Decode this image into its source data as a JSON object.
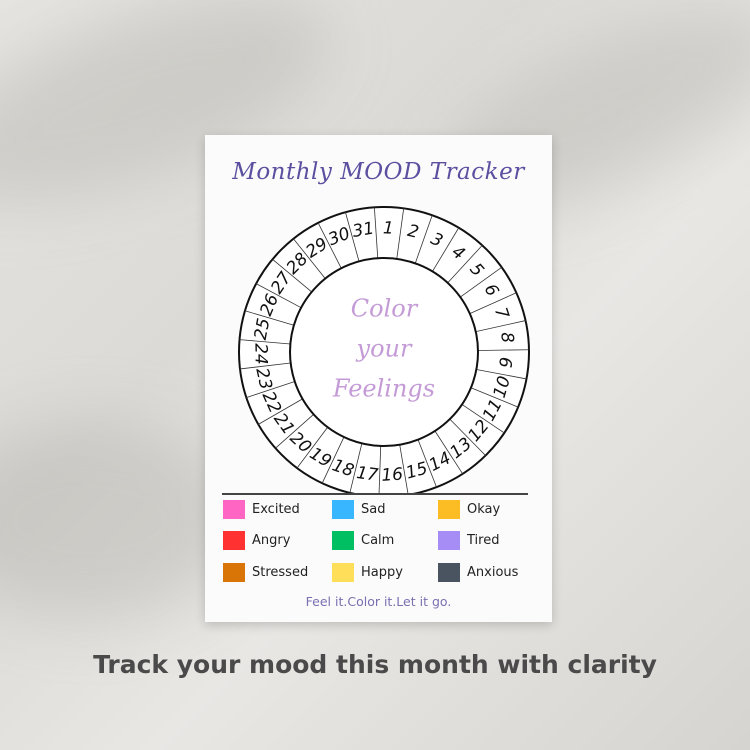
{
  "title": "Monthly MOOD Tracker",
  "center_text": [
    "Color",
    "your",
    "Feelings"
  ],
  "days": [
    1,
    2,
    3,
    4,
    5,
    6,
    7,
    8,
    9,
    10,
    11,
    12,
    13,
    14,
    15,
    16,
    17,
    18,
    19,
    20,
    21,
    22,
    23,
    24,
    25,
    26,
    27,
    28,
    29,
    30,
    31
  ],
  "legend": [
    {
      "label": "Excited",
      "color": "#ff66c4"
    },
    {
      "label": "Sad",
      "color": "#38b6ff"
    },
    {
      "label": "Okay",
      "color": "#fbbc24"
    },
    {
      "label": "Angry",
      "color": "#ff3131"
    },
    {
      "label": "Calm",
      "color": "#00bf63"
    },
    {
      "label": "Tired",
      "color": "#a68cf5"
    },
    {
      "label": "Stressed",
      "color": "#d87506"
    },
    {
      "label": "Happy",
      "color": "#ffde59"
    },
    {
      "label": "Anxious",
      "color": "#4a5360"
    }
  ],
  "tagline": "Feel it.Color it.Let it go.",
  "caption": "Track your mood this month with clarity",
  "colors": {
    "title": "#5b4fa0",
    "center_text": "#c49bd6",
    "tagline": "#7a6fb0"
  }
}
